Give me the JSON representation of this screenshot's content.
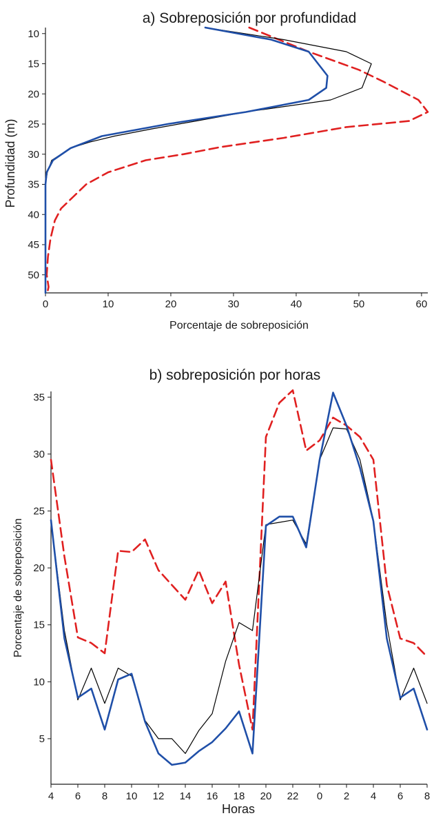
{
  "chart_data": [
    {
      "type": "line",
      "title": "a) Sobreposición por profundidad",
      "xlabel": "Porcentaje de sobreposición",
      "ylabel": "Profundidad (m)",
      "xlim": [
        0,
        61
      ],
      "ylim": [
        53,
        9
      ],
      "y_inverted": true,
      "xticks": [
        0,
        10,
        20,
        30,
        40,
        50,
        60
      ],
      "yticks": [
        10,
        15,
        20,
        25,
        30,
        35,
        40,
        45,
        50
      ],
      "grid": false,
      "series": [
        {
          "color": "#000000",
          "style": "solid-thin",
          "points": [
            [
              25.5,
              9
            ],
            [
              38,
              11
            ],
            [
              48,
              13
            ],
            [
              52,
              15
            ],
            [
              50.5,
              19
            ],
            [
              45.5,
              21
            ],
            [
              32,
              23
            ],
            [
              24,
              24.5
            ],
            [
              17,
              25.8
            ],
            [
              11,
              27
            ],
            [
              7,
              28
            ],
            [
              4,
              29
            ],
            [
              1,
              31
            ],
            [
              0.3,
              33
            ],
            [
              0,
              35
            ],
            [
              0,
              53
            ]
          ]
        },
        {
          "color": "#1f4fa8",
          "style": "solid-thick",
          "points": [
            [
              25.5,
              9
            ],
            [
              36,
              11
            ],
            [
              42,
              13
            ],
            [
              45,
              17
            ],
            [
              44.8,
              19
            ],
            [
              42,
              21
            ],
            [
              32,
              23
            ],
            [
              19.5,
              25
            ],
            [
              9,
              27
            ],
            [
              4,
              29
            ],
            [
              1.2,
              31
            ],
            [
              0.2,
              33
            ],
            [
              0,
              35
            ],
            [
              0,
              53
            ]
          ]
        },
        {
          "color": "#e02020",
          "style": "dashed",
          "points": [
            [
              32.5,
              9
            ],
            [
              42,
              13
            ],
            [
              50,
              16
            ],
            [
              54,
              18
            ],
            [
              59.5,
              21
            ],
            [
              61,
              23
            ],
            [
              58,
              24.5
            ],
            [
              48,
              25.5
            ],
            [
              38,
              27.3
            ],
            [
              28,
              28.8
            ],
            [
              22,
              30
            ],
            [
              16,
              31
            ],
            [
              10,
              33
            ],
            [
              6.5,
              35
            ],
            [
              4.5,
              37
            ],
            [
              2.5,
              39
            ],
            [
              1.5,
              41
            ],
            [
              0.8,
              44
            ],
            [
              0.4,
              47
            ],
            [
              0.2,
              50
            ],
            [
              0.5,
              52
            ],
            [
              0.3,
              53
            ]
          ]
        }
      ]
    },
    {
      "type": "line",
      "title": "b) sobreposición por horas",
      "xlabel": "Horas",
      "ylabel": "Porcentaje de sobreposición",
      "categories": [
        "4",
        "5",
        "6",
        "7",
        "8",
        "9",
        "10",
        "11",
        "12",
        "13",
        "14",
        "15",
        "16",
        "17",
        "18",
        "19",
        "20",
        "21",
        "22",
        "23",
        "0",
        "1",
        "2",
        "3",
        "4",
        "5",
        "6",
        "7",
        "8"
      ],
      "xtick_labels": [
        "4",
        "6",
        "8",
        "10",
        "12",
        "14",
        "16",
        "18",
        "20",
        "22",
        "0",
        "2",
        "4",
        "6",
        "8"
      ],
      "ylim": [
        1,
        35.5
      ],
      "yticks": [
        5,
        10,
        15,
        20,
        25,
        30,
        35
      ],
      "grid": false,
      "series": [
        {
          "color": "#000000",
          "style": "solid-thin",
          "values": [
            24.2,
            14.5,
            8.4,
            11.2,
            8.1,
            11.2,
            10.5,
            6.6,
            5.0,
            5.0,
            3.7,
            5.7,
            7.2,
            11.8,
            15.2,
            14.5,
            23.8,
            24.0,
            24.2,
            22.1,
            29.5,
            32.3,
            32.2,
            29.5,
            24.2,
            15.0,
            8.4,
            11.2,
            8.1
          ]
        },
        {
          "color": "#1f4fa8",
          "style": "solid-thick",
          "values": [
            24.2,
            13.8,
            8.6,
            9.4,
            5.8,
            10.2,
            10.7,
            6.5,
            3.7,
            2.7,
            2.9,
            3.9,
            4.7,
            5.9,
            7.4,
            3.7,
            23.7,
            24.5,
            24.5,
            21.8,
            29.5,
            35.4,
            32.5,
            28.8,
            24.1,
            13.8,
            8.6,
            9.4,
            5.8
          ]
        },
        {
          "color": "#e02020",
          "style": "dashed",
          "values": [
            29.5,
            21.0,
            13.9,
            13.4,
            12.5,
            21.5,
            21.4,
            22.5,
            19.8,
            18.5,
            17.2,
            19.8,
            16.9,
            18.8,
            11.5,
            5.8,
            31.5,
            34.5,
            35.6,
            30.3,
            31.2,
            33.2,
            32.5,
            31.5,
            29.5,
            18.5,
            13.8,
            13.4,
            12.2
          ]
        }
      ]
    }
  ]
}
